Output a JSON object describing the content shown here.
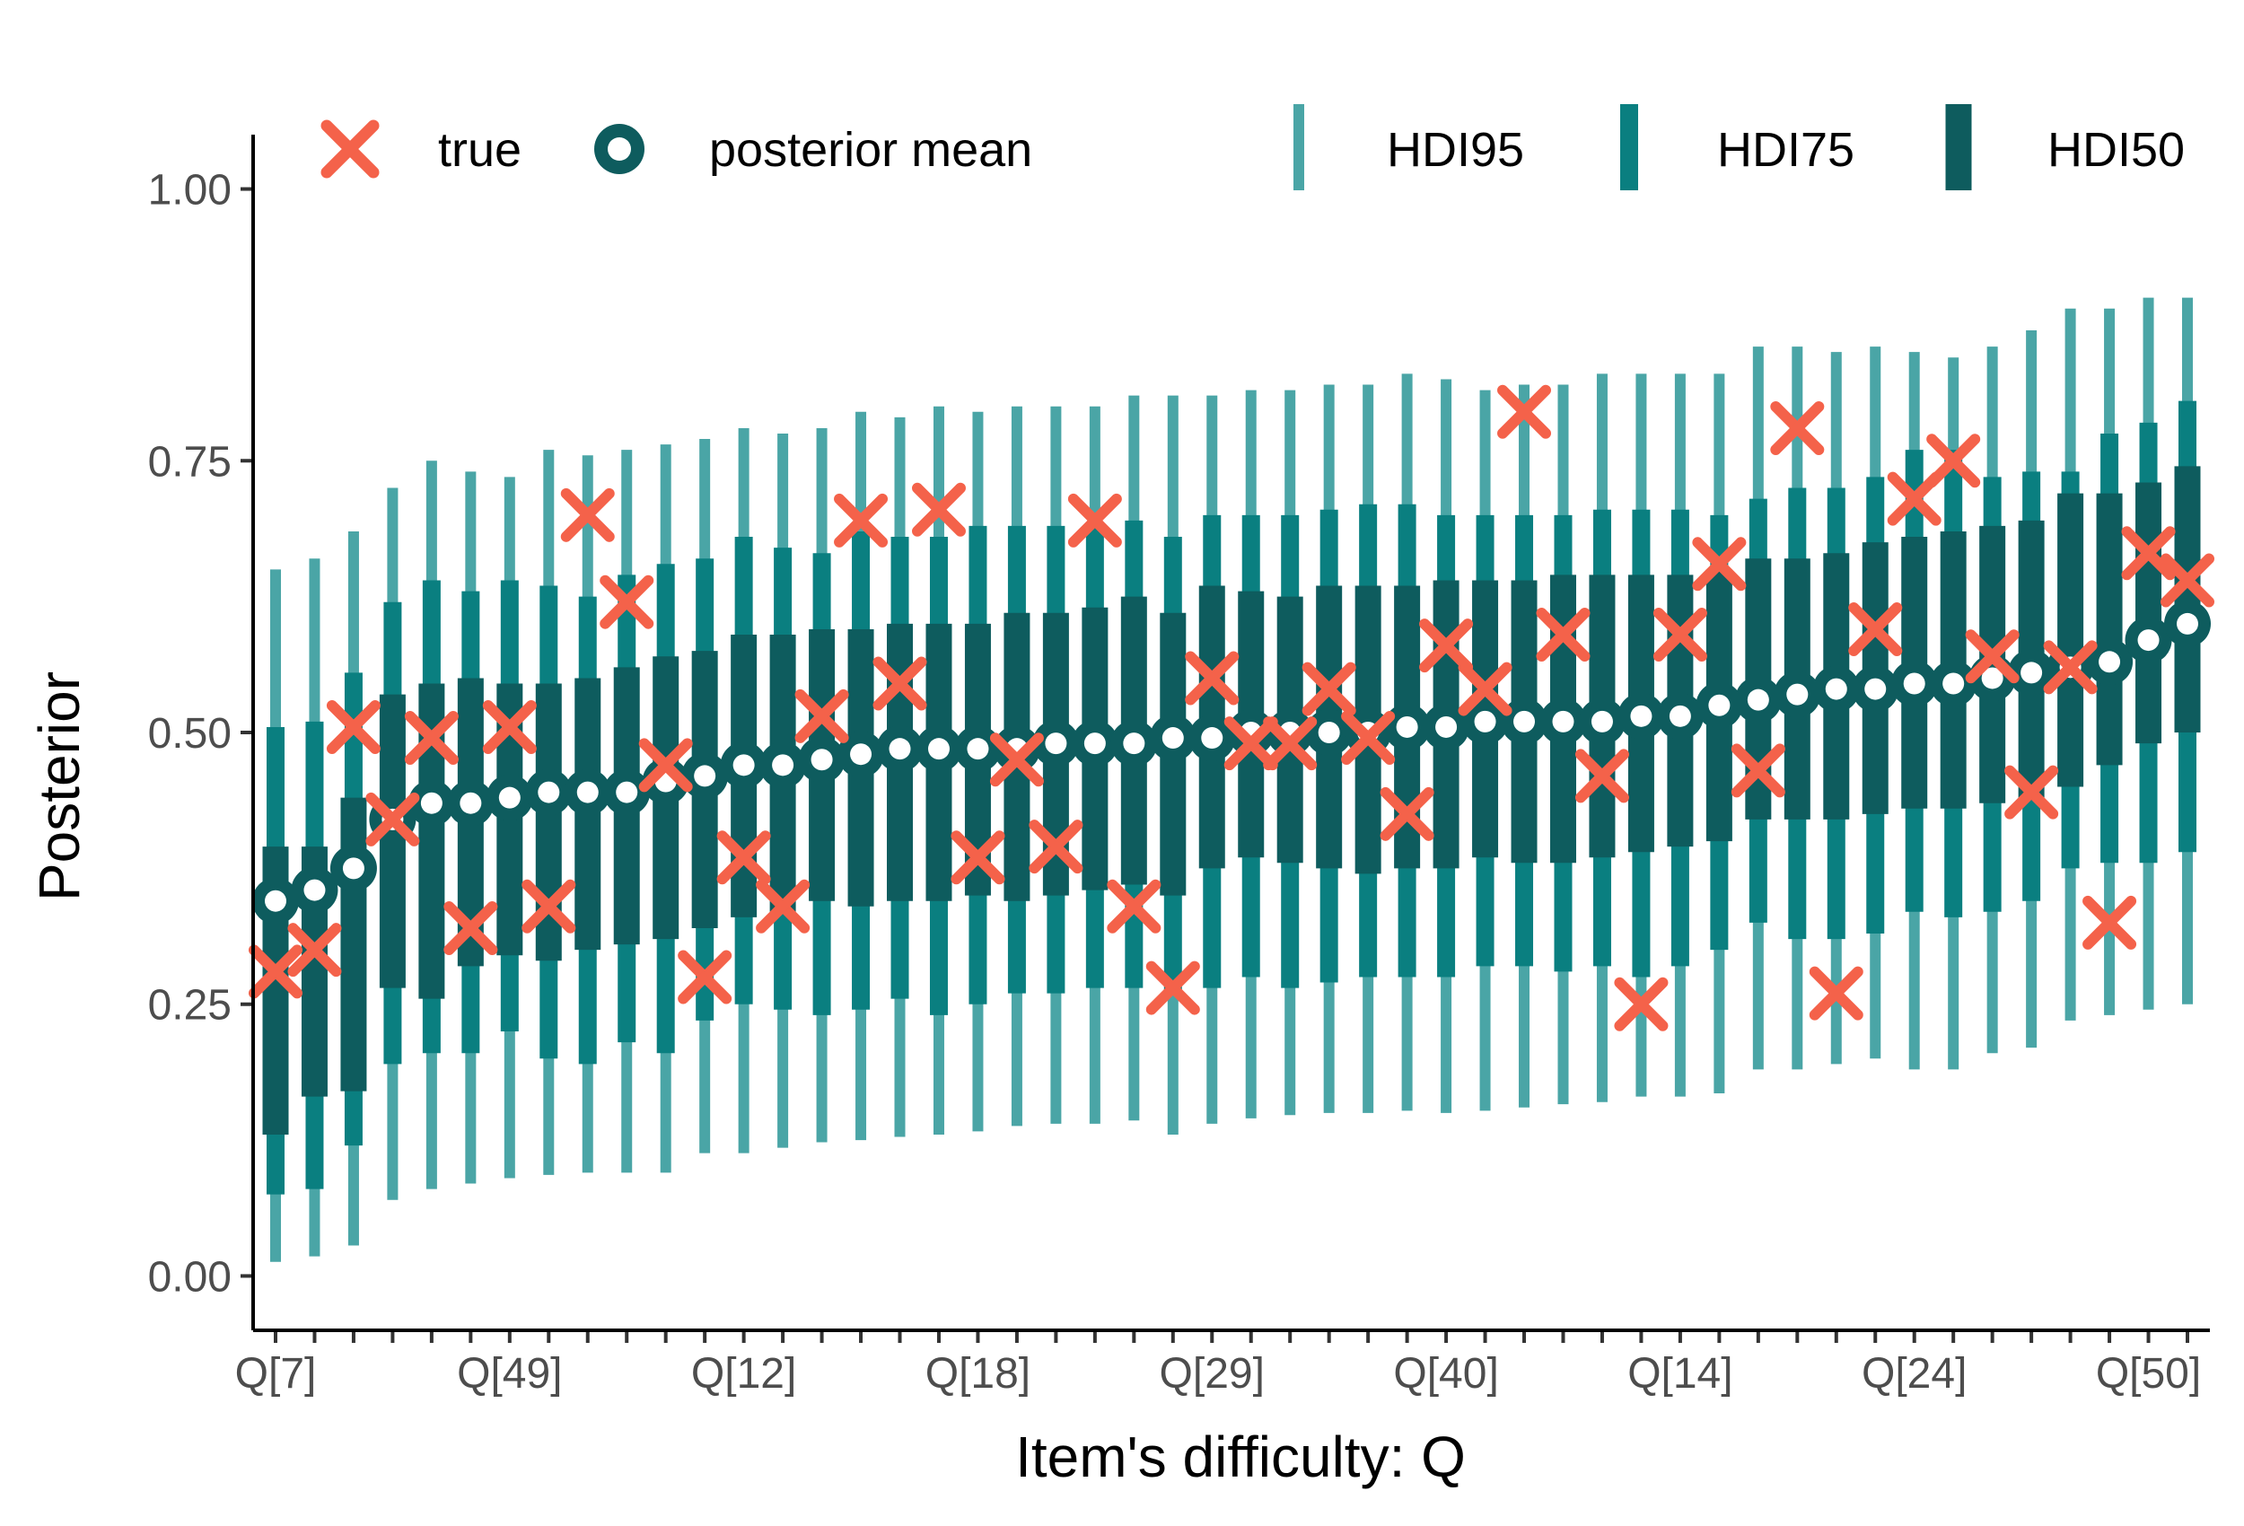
{
  "chart_data": {
    "type": "interval-point",
    "xlabel": "Item's difficulty: Q",
    "ylabel": "Posterior",
    "ylim": [
      -0.05,
      1.05
    ],
    "yticks": [
      0.0,
      0.25,
      0.5,
      0.75,
      1.0
    ],
    "ytick_labels": [
      "0.00",
      "0.25",
      "0.50",
      "0.75",
      "1.00"
    ],
    "xtick_labels": [
      "Q[7]",
      "Q[49]",
      "Q[12]",
      "Q[18]",
      "Q[29]",
      "Q[40]",
      "Q[14]",
      "Q[24]",
      "Q[50]"
    ],
    "xtick_every": 6,
    "n_items": 50,
    "colors": {
      "true": "#f4624a",
      "mean": "#0e5c5e",
      "hdi95": "#4aa5a6",
      "hdi75": "#0a7f80",
      "hdi50": "#0e5c5e"
    },
    "legend": {
      "position": "top",
      "items": [
        {
          "key": "true",
          "label": "true",
          "glyph": "cross"
        },
        {
          "key": "mean",
          "label": "posterior mean",
          "glyph": "ring"
        },
        {
          "key": "hdi95",
          "label": "HDI95",
          "glyph": "bar"
        },
        {
          "key": "hdi75",
          "label": "HDI75",
          "glyph": "bar"
        },
        {
          "key": "hdi50",
          "label": "HDI50",
          "glyph": "bar"
        }
      ]
    },
    "mean": [
      0.345,
      0.355,
      0.375,
      0.42,
      0.435,
      0.435,
      0.44,
      0.445,
      0.445,
      0.445,
      0.455,
      0.46,
      0.47,
      0.47,
      0.475,
      0.48,
      0.485,
      0.485,
      0.485,
      0.485,
      0.49,
      0.49,
      0.49,
      0.495,
      0.495,
      0.5,
      0.5,
      0.5,
      0.5,
      0.505,
      0.505,
      0.51,
      0.51,
      0.51,
      0.51,
      0.515,
      0.515,
      0.525,
      0.53,
      0.535,
      0.54,
      0.54,
      0.545,
      0.545,
      0.55,
      0.555,
      0.56,
      0.565,
      0.585,
      0.6
    ],
    "true": [
      0.28,
      0.3,
      0.505,
      0.42,
      0.495,
      0.32,
      0.505,
      0.34,
      0.7,
      0.62,
      0.47,
      0.275,
      0.385,
      0.34,
      0.515,
      0.695,
      0.545,
      0.705,
      0.385,
      0.475,
      0.395,
      0.695,
      0.34,
      0.265,
      0.55,
      0.49,
      0.49,
      0.54,
      0.495,
      0.425,
      0.58,
      0.54,
      0.795,
      0.59,
      0.46,
      0.25,
      0.59,
      0.655,
      0.465,
      0.78,
      0.26,
      0.595,
      0.715,
      0.75,
      0.57,
      0.445,
      0.56,
      0.325,
      0.665,
      0.64
    ],
    "hdi95_low": [
      0.013,
      0.018,
      0.028,
      0.07,
      0.08,
      0.085,
      0.09,
      0.093,
      0.095,
      0.095,
      0.095,
      0.113,
      0.113,
      0.118,
      0.123,
      0.125,
      0.128,
      0.13,
      0.133,
      0.138,
      0.14,
      0.14,
      0.143,
      0.13,
      0.14,
      0.145,
      0.148,
      0.15,
      0.15,
      0.152,
      0.15,
      0.152,
      0.155,
      0.158,
      0.16,
      0.165,
      0.165,
      0.168,
      0.19,
      0.19,
      0.195,
      0.2,
      0.19,
      0.19,
      0.205,
      0.21,
      0.235,
      0.24,
      0.245,
      0.25
    ],
    "hdi95_high": [
      0.65,
      0.66,
      0.685,
      0.725,
      0.75,
      0.74,
      0.735,
      0.76,
      0.755,
      0.76,
      0.765,
      0.77,
      0.78,
      0.775,
      0.78,
      0.795,
      0.79,
      0.8,
      0.795,
      0.8,
      0.8,
      0.8,
      0.81,
      0.81,
      0.81,
      0.815,
      0.815,
      0.82,
      0.82,
      0.83,
      0.825,
      0.815,
      0.82,
      0.82,
      0.83,
      0.83,
      0.83,
      0.83,
      0.855,
      0.855,
      0.85,
      0.855,
      0.85,
      0.845,
      0.855,
      0.87,
      0.89,
      0.89,
      0.9,
      0.9
    ],
    "hdi75_low": [
      0.075,
      0.08,
      0.12,
      0.195,
      0.205,
      0.205,
      0.225,
      0.2,
      0.195,
      0.215,
      0.205,
      0.235,
      0.25,
      0.245,
      0.24,
      0.245,
      0.255,
      0.24,
      0.25,
      0.26,
      0.26,
      0.265,
      0.265,
      0.26,
      0.265,
      0.275,
      0.265,
      0.27,
      0.275,
      0.275,
      0.275,
      0.285,
      0.285,
      0.28,
      0.285,
      0.275,
      0.285,
      0.3,
      0.325,
      0.31,
      0.31,
      0.315,
      0.335,
      0.33,
      0.335,
      0.345,
      0.375,
      0.38,
      0.38,
      0.39
    ],
    "hdi75_high": [
      0.505,
      0.51,
      0.555,
      0.62,
      0.64,
      0.63,
      0.64,
      0.635,
      0.625,
      0.645,
      0.655,
      0.66,
      0.68,
      0.67,
      0.665,
      0.685,
      0.68,
      0.68,
      0.69,
      0.69,
      0.69,
      0.69,
      0.695,
      0.68,
      0.7,
      0.7,
      0.7,
      0.705,
      0.71,
      0.71,
      0.7,
      0.7,
      0.7,
      0.7,
      0.705,
      0.705,
      0.705,
      0.7,
      0.715,
      0.725,
      0.725,
      0.735,
      0.76,
      0.76,
      0.735,
      0.74,
      0.74,
      0.775,
      0.785,
      0.805
    ],
    "hdi50_low": [
      0.13,
      0.165,
      0.17,
      0.265,
      0.255,
      0.285,
      0.295,
      0.29,
      0.3,
      0.305,
      0.31,
      0.32,
      0.33,
      0.335,
      0.345,
      0.34,
      0.345,
      0.345,
      0.35,
      0.345,
      0.35,
      0.355,
      0.36,
      0.35,
      0.375,
      0.385,
      0.38,
      0.375,
      0.37,
      0.375,
      0.375,
      0.385,
      0.38,
      0.38,
      0.385,
      0.39,
      0.395,
      0.4,
      0.42,
      0.42,
      0.42,
      0.425,
      0.43,
      0.43,
      0.435,
      0.44,
      0.45,
      0.47,
      0.49,
      0.5
    ],
    "hdi50_high": [
      0.395,
      0.395,
      0.44,
      0.535,
      0.545,
      0.55,
      0.545,
      0.545,
      0.55,
      0.56,
      0.57,
      0.575,
      0.59,
      0.59,
      0.595,
      0.595,
      0.6,
      0.6,
      0.6,
      0.61,
      0.61,
      0.615,
      0.625,
      0.61,
      0.635,
      0.63,
      0.625,
      0.635,
      0.635,
      0.635,
      0.64,
      0.64,
      0.64,
      0.645,
      0.645,
      0.645,
      0.645,
      0.65,
      0.66,
      0.66,
      0.665,
      0.675,
      0.68,
      0.685,
      0.69,
      0.695,
      0.72,
      0.72,
      0.73,
      0.745
    ]
  }
}
